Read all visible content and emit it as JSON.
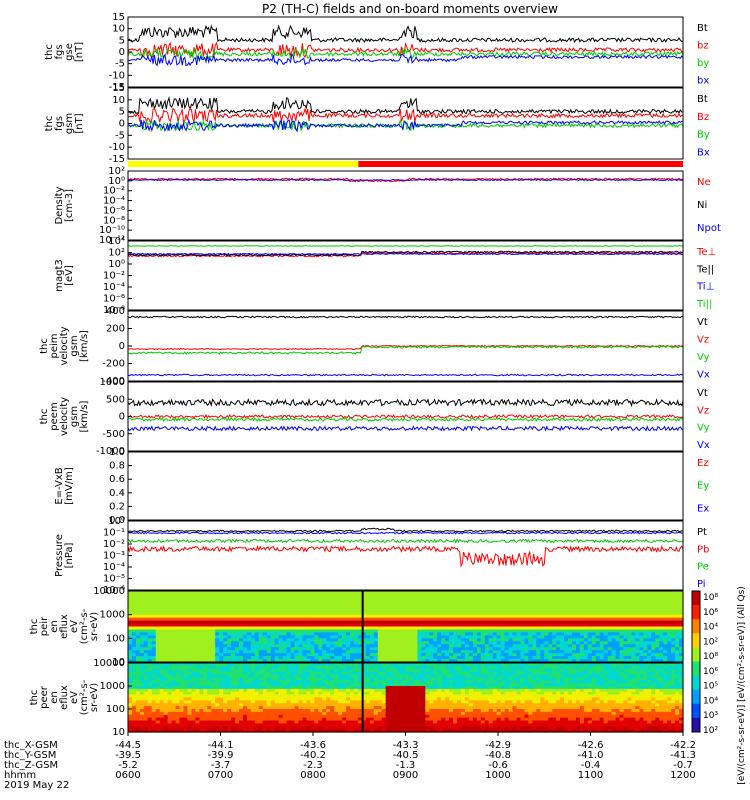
{
  "title": "P2 (TH-C) fields and on-board moments overview",
  "x_tick_labels": {
    "thc_X-GSM": [
      "-44.5",
      "-44.1",
      "-43.6",
      "-43.3",
      "-42.9",
      "-42.6",
      "-42.2"
    ],
    "thc_Y-GSM": [
      "-39.5",
      "-39.9",
      "-40.2",
      "-40.5",
      "-40.8",
      "-41.0",
      "-41.3"
    ],
    "thc_Z-GSM": [
      "-5.2",
      "-3.7",
      "-2.3",
      "-1.3",
      "-0.6",
      "-0.4",
      "-0.7"
    ],
    "hhmm": [
      "0600",
      "0700",
      "0800",
      "0900",
      "1000",
      "1100",
      "1200"
    ]
  },
  "x_row_labels": [
    "thc_X-GSM",
    "thc_Y-GSM",
    "thc_Z-GSM",
    "hhmm"
  ],
  "date_label": "2019 May 22",
  "colors": {
    "black": "#000000",
    "red": "#ff0000",
    "green": "#00cc00",
    "blue": "#0000ff",
    "yellow": "#ffff00"
  },
  "mode_bar": {
    "yellow_until_hhmm": "0835",
    "red_after_hhmm": "0835"
  },
  "panels": [
    {
      "ylabel": [
        "thc",
        "fgs",
        "gse",
        "[nT]"
      ],
      "yticks": [
        "15",
        "10",
        "5",
        "0",
        "-5",
        "-10",
        "-15"
      ],
      "legend": [
        "Bt",
        "bz",
        "by",
        "bx"
      ],
      "legend_colors": [
        "black",
        "red",
        "green",
        "blue"
      ]
    },
    {
      "ylabel": [
        "thc",
        "fgs",
        "gsm",
        "[nT]"
      ],
      "yticks": [
        "15",
        "10",
        "5",
        "0",
        "-5",
        "-10",
        "-15"
      ],
      "legend": [
        "Bt",
        "Bz",
        "By",
        "Bx"
      ],
      "legend_colors": [
        "black",
        "red",
        "green",
        "blue"
      ]
    },
    {
      "ylabel": [
        "Density",
        "[cm-3]"
      ],
      "yticks": [
        "10²",
        "10⁰",
        "10⁻²",
        "10⁻⁴",
        "10⁻⁶",
        "10⁻⁸",
        "10⁻¹⁰",
        "10⁻¹²"
      ],
      "legend": [
        "Ne",
        "Ni",
        "Npot"
      ],
      "legend_colors": [
        "red",
        "black",
        "blue"
      ]
    },
    {
      "ylabel": [
        "magt3",
        "[eV]"
      ],
      "yticks": [
        "10⁴",
        "10²",
        "10⁰",
        "10⁻²",
        "10⁻⁴",
        "10⁻⁶",
        "10⁻⁸"
      ],
      "legend": [
        "Te⊥",
        "Te||",
        "Ti⊥",
        "Ti||"
      ],
      "legend_colors": [
        "red",
        "black",
        "blue",
        "green"
      ]
    },
    {
      "ylabel": [
        "thc",
        "peim",
        "velocity",
        "gsm",
        "[km/s]"
      ],
      "yticks": [
        "400",
        "200",
        "0",
        "-200",
        "-400"
      ],
      "legend": [
        "Vt",
        "Vz",
        "Vy",
        "Vx"
      ],
      "legend_colors": [
        "black",
        "red",
        "green",
        "blue"
      ]
    },
    {
      "ylabel": [
        "thc",
        "peem",
        "velocity",
        "gsm",
        "[km/s]"
      ],
      "yticks": [
        "1000",
        "500",
        "0",
        "-500",
        "-1000"
      ],
      "legend": [
        "Vt",
        "Vz",
        "Vy",
        "Vx"
      ],
      "legend_colors": [
        "black",
        "red",
        "green",
        "blue"
      ]
    },
    {
      "ylabel": [
        "E=-VxB",
        "[mV/m]"
      ],
      "yticks": [
        "1.0",
        "0.8",
        "0.6",
        "0.4",
        "0.2",
        "0.0"
      ],
      "legend": [
        "Ez",
        "Ey",
        "Ex"
      ],
      "legend_colors": [
        "red",
        "green",
        "blue"
      ]
    },
    {
      "ylabel": [
        "Pressure",
        "[nPa]"
      ],
      "yticks": [
        "10⁰",
        "10⁻¹",
        "10⁻²",
        "10⁻³",
        "10⁻⁴",
        "10⁻⁵",
        "10⁻⁶"
      ],
      "legend": [
        "Pt",
        "Pb",
        "Pe",
        "Pi"
      ],
      "legend_colors": [
        "black",
        "red",
        "green",
        "blue"
      ]
    },
    {
      "ylabel": [
        "thc",
        "peir",
        "en",
        "eflux",
        "eV",
        "(cm²-s-",
        "sr-eV)"
      ],
      "yticks": [
        "10000",
        "1000",
        "100",
        "10"
      ],
      "legend": [],
      "legend_colors": []
    },
    {
      "ylabel": [
        "thc",
        "peer",
        "en",
        "eflux",
        "eV",
        "(cm²-s-",
        "sr-eV)"
      ],
      "yticks": [
        "10000",
        "1000",
        "100",
        "10"
      ],
      "legend": [],
      "legend_colors": []
    }
  ],
  "colorbar": {
    "ticks": [
      "10⁸",
      "10⁶",
      "10⁴",
      "10²",
      "10⁸",
      "10⁶",
      "10⁵",
      "10⁴",
      "10³",
      "10²"
    ],
    "label": "[eV/(cm²-s-sr-eV)] [eV/(cm²-s-sr-eV)] (All Qs)"
  },
  "chart_data": {
    "type": "line",
    "title": "P2 (TH-C) fields and on-board moments overview",
    "x": [
      "0600",
      "0700",
      "0800",
      "0900",
      "1000",
      "1100",
      "1200"
    ],
    "xlabel": "hhmm",
    "series": [
      {
        "name": "Bt",
        "panel": "fgs gse",
        "values": [
          10,
          12,
          12,
          11,
          6,
          5,
          6
        ]
      },
      {
        "name": "bz",
        "panel": "fgs gse",
        "values": [
          -1,
          3,
          2,
          2,
          3,
          4,
          4
        ]
      },
      {
        "name": "by",
        "panel": "fgs gse",
        "values": [
          0,
          1,
          0,
          -1,
          1,
          2,
          2
        ]
      },
      {
        "name": "bx",
        "panel": "fgs gse",
        "values": [
          -5,
          -5,
          -3,
          -3,
          -2,
          -1,
          -1
        ]
      },
      {
        "name": "Ne",
        "panel": "Density",
        "values": [
          1,
          1,
          0.6,
          1,
          0.9,
          0.8,
          0.8
        ]
      },
      {
        "name": "Te⊥",
        "panel": "magt3",
        "values": [
          200,
          200,
          200,
          400,
          500,
          500,
          600
        ]
      },
      {
        "name": "Vt",
        "panel": "peim",
        "values": [
          350,
          350,
          350,
          350,
          360,
          360,
          360
        ]
      },
      {
        "name": "Vx",
        "panel": "peim",
        "values": [
          -340,
          -340,
          -330,
          -330,
          -350,
          -350,
          -350
        ]
      },
      {
        "name": "Pt",
        "panel": "Pressure",
        "values": [
          0.05,
          0.05,
          0.02,
          0.05,
          0.02,
          0.02,
          0.02
        ]
      },
      {
        "name": "Pb",
        "panel": "Pressure",
        "values": [
          0.004,
          0.003,
          0.002,
          0.005,
          0.0001,
          0.001,
          0.001
        ]
      }
    ],
    "panels": [
      {
        "type": "line",
        "ylabel": "thc fgs gse [nT]",
        "ylim": [
          -15,
          15
        ]
      },
      {
        "type": "line",
        "ylabel": "thc fgs gsm [nT]",
        "ylim": [
          -15,
          15
        ]
      },
      {
        "type": "line",
        "ylabel": "Density [cm-3]",
        "ylim": [
          1e-12,
          100.0
        ],
        "yscale": "log"
      },
      {
        "type": "line",
        "ylabel": "magt3 [eV]",
        "ylim": [
          1e-08,
          10000.0
        ],
        "yscale": "log"
      },
      {
        "type": "line",
        "ylabel": "thc peim velocity gsm [km/s]",
        "ylim": [
          -400,
          400
        ]
      },
      {
        "type": "line",
        "ylabel": "thc peem velocity gsm [km/s]",
        "ylim": [
          -1000,
          1000
        ]
      },
      {
        "type": "line",
        "ylabel": "E=-VxB [mV/m]",
        "ylim": [
          0,
          1
        ]
      },
      {
        "type": "line",
        "ylabel": "Pressure [nPa]",
        "ylim": [
          1e-06,
          1
        ],
        "yscale": "log"
      },
      {
        "type": "heatmap",
        "ylabel": "thc peir en eflux eV (cm2-s-sr-eV)",
        "ylim": [
          5,
          30000
        ],
        "yscale": "log",
        "zlim": [
          100,
          100000000
        ],
        "zscale": "log"
      },
      {
        "type": "heatmap",
        "ylabel": "thc peer en eflux eV (cm2-s-sr-eV)",
        "ylim": [
          5,
          30000
        ],
        "yscale": "log",
        "zlim": [
          100,
          100000000
        ],
        "zscale": "log"
      }
    ],
    "grid": false,
    "legend": "right"
  }
}
